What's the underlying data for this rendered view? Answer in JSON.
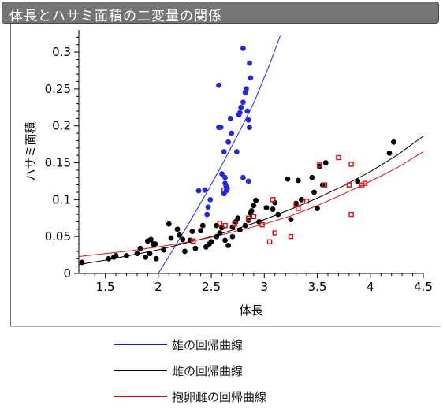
{
  "title": "体長とハサミ面積の二変量の関係",
  "chart_data": {
    "type": "scatter",
    "xlabel": "体長",
    "ylabel": "ハサミ面積",
    "xlim": [
      1.25,
      4.5
    ],
    "ylim": [
      0,
      0.33
    ],
    "x_ticks": [
      1.5,
      2,
      2.5,
      3,
      3.5,
      4,
      4.5
    ],
    "x_tick_labels": [
      "1.5",
      "2",
      "2.5",
      "3",
      "3.5",
      "4",
      "4.5"
    ],
    "y_ticks": [
      0,
      0.05,
      0.1,
      0.15,
      0.2,
      0.25,
      0.3
    ],
    "y_tick_labels": [
      "0",
      "0.05",
      "0.1",
      "0.15",
      "0.2",
      "0.25",
      "0.3"
    ],
    "grid": false,
    "legend_position": "bottom",
    "series": [
      {
        "name": "雄",
        "color": "#2424e8",
        "marker": "circle",
        "points": [
          [
            2.57,
            0.255
          ],
          [
            2.57,
            0.198
          ],
          [
            2.59,
            0.198
          ],
          [
            2.6,
            0.135
          ],
          [
            2.62,
            0.165
          ],
          [
            2.63,
            0.122
          ],
          [
            2.64,
            0.118
          ],
          [
            2.65,
            0.115
          ],
          [
            2.64,
            0.112
          ],
          [
            2.62,
            0.108
          ],
          [
            2.66,
            0.178
          ],
          [
            2.68,
            0.21
          ],
          [
            2.69,
            0.19
          ],
          [
            2.74,
            0.165
          ],
          [
            2.76,
            0.215
          ],
          [
            2.77,
            0.218
          ],
          [
            2.78,
            0.225
          ],
          [
            2.8,
            0.232
          ],
          [
            2.8,
            0.305
          ],
          [
            2.82,
            0.245
          ],
          [
            2.83,
            0.25
          ],
          [
            2.84,
            0.22
          ],
          [
            2.86,
            0.285
          ],
          [
            2.85,
            0.208
          ],
          [
            2.86,
            0.198
          ],
          [
            2.87,
            0.265
          ],
          [
            2.8,
            0.13
          ],
          [
            2.85,
            0.125
          ],
          [
            2.44,
            0.113
          ],
          [
            2.47,
            0.09
          ],
          [
            2.46,
            0.08
          ],
          [
            2.49,
            0.1
          ],
          [
            2.38,
            0.112
          ],
          [
            2.63,
            0.13
          ]
        ],
        "fit": [
          [
            2.0,
            0.0
          ],
          [
            2.15,
            0.035
          ],
          [
            2.3,
            0.071
          ],
          [
            2.45,
            0.108
          ],
          [
            2.6,
            0.147
          ],
          [
            2.75,
            0.188
          ],
          [
            2.9,
            0.231
          ],
          [
            3.05,
            0.283
          ],
          [
            3.15,
            0.322
          ]
        ]
      },
      {
        "name": "雌",
        "color": "#000000",
        "marker": "circle",
        "points": [
          [
            1.28,
            0.015
          ],
          [
            1.53,
            0.02
          ],
          [
            1.58,
            0.022
          ],
          [
            1.6,
            0.024
          ],
          [
            1.7,
            0.024
          ],
          [
            1.8,
            0.027
          ],
          [
            1.83,
            0.034
          ],
          [
            1.88,
            0.022
          ],
          [
            1.92,
            0.027
          ],
          [
            1.9,
            0.044
          ],
          [
            1.93,
            0.046
          ],
          [
            1.95,
            0.04
          ],
          [
            1.98,
            0.02
          ],
          [
            1.97,
            0.04
          ],
          [
            2.05,
            0.032
          ],
          [
            2.1,
            0.067
          ],
          [
            2.12,
            0.048
          ],
          [
            2.18,
            0.06
          ],
          [
            2.2,
            0.052
          ],
          [
            2.23,
            0.046
          ],
          [
            2.25,
            0.03
          ],
          [
            2.3,
            0.045
          ],
          [
            2.32,
            0.057
          ],
          [
            2.35,
            0.034
          ],
          [
            2.4,
            0.058
          ],
          [
            2.42,
            0.065
          ],
          [
            2.45,
            0.036
          ],
          [
            2.48,
            0.04
          ],
          [
            2.5,
            0.043
          ],
          [
            2.55,
            0.05
          ],
          [
            2.55,
            0.065
          ],
          [
            2.58,
            0.055
          ],
          [
            2.6,
            0.062
          ],
          [
            2.63,
            0.045
          ],
          [
            2.66,
            0.038
          ],
          [
            2.7,
            0.05
          ],
          [
            2.7,
            0.063
          ],
          [
            2.73,
            0.07
          ],
          [
            2.75,
            0.075
          ],
          [
            2.77,
            0.059
          ],
          [
            2.82,
            0.065
          ],
          [
            2.85,
            0.072
          ],
          [
            2.87,
            0.082
          ],
          [
            2.88,
            0.085
          ],
          [
            2.9,
            0.092
          ],
          [
            2.92,
            0.099
          ],
          [
            2.95,
            0.07
          ],
          [
            3.02,
            0.089
          ],
          [
            3.08,
            0.087
          ],
          [
            3.1,
            0.096
          ],
          [
            3.13,
            0.08
          ],
          [
            3.22,
            0.128
          ],
          [
            3.25,
            0.073
          ],
          [
            3.3,
            0.095
          ],
          [
            3.32,
            0.126
          ],
          [
            3.35,
            0.1
          ],
          [
            3.45,
            0.13
          ],
          [
            3.47,
            0.11
          ],
          [
            3.52,
            0.145
          ],
          [
            3.55,
            0.12
          ],
          [
            3.5,
            0.088
          ],
          [
            3.58,
            0.15
          ],
          [
            3.88,
            0.125
          ],
          [
            4.18,
            0.163
          ],
          [
            4.22,
            0.178
          ]
        ],
        "fit": [
          [
            1.25,
            0.012
          ],
          [
            1.5,
            0.018
          ],
          [
            1.75,
            0.025
          ],
          [
            2.0,
            0.032
          ],
          [
            2.25,
            0.041
          ],
          [
            2.5,
            0.05
          ],
          [
            2.75,
            0.061
          ],
          [
            3.0,
            0.073
          ],
          [
            3.25,
            0.087
          ],
          [
            3.5,
            0.102
          ],
          [
            3.75,
            0.119
          ],
          [
            4.0,
            0.138
          ],
          [
            4.25,
            0.16
          ],
          [
            4.5,
            0.186
          ]
        ]
      },
      {
        "name": "抱卵雌",
        "color": "#e01010",
        "marker": "square-open",
        "points": [
          [
            2.33,
            0.044
          ],
          [
            2.58,
            0.068
          ],
          [
            2.63,
            0.065
          ],
          [
            2.72,
            0.067
          ],
          [
            2.85,
            0.075
          ],
          [
            2.9,
            0.077
          ],
          [
            2.98,
            0.066
          ],
          [
            3.05,
            0.043
          ],
          [
            3.08,
            0.1
          ],
          [
            3.1,
            0.055
          ],
          [
            3.25,
            0.05
          ],
          [
            3.3,
            0.093
          ],
          [
            3.32,
            0.088
          ],
          [
            3.4,
            0.098
          ],
          [
            3.52,
            0.147
          ],
          [
            3.57,
            0.12
          ],
          [
            3.7,
            0.157
          ],
          [
            3.8,
            0.12
          ],
          [
            3.82,
            0.148
          ],
          [
            3.82,
            0.08
          ],
          [
            3.92,
            0.12
          ],
          [
            3.95,
            0.122
          ],
          [
            2.62,
            0.113
          ]
        ],
        "fit": [
          [
            1.25,
            0.023
          ],
          [
            1.5,
            0.027
          ],
          [
            1.75,
            0.031
          ],
          [
            2.0,
            0.036
          ],
          [
            2.25,
            0.042
          ],
          [
            2.5,
            0.049
          ],
          [
            2.75,
            0.058
          ],
          [
            3.0,
            0.067
          ],
          [
            3.25,
            0.078
          ],
          [
            3.5,
            0.092
          ],
          [
            3.75,
            0.108
          ],
          [
            4.0,
            0.125
          ],
          [
            4.25,
            0.143
          ],
          [
            4.5,
            0.165
          ]
        ]
      }
    ]
  },
  "legend": [
    {
      "label": "雄の回帰曲線",
      "color": "#1a1ab8"
    },
    {
      "label": "雌の回帰曲線",
      "color": "#000000"
    },
    {
      "label": "抱卵雌の回帰曲線",
      "color": "#d01010"
    }
  ]
}
